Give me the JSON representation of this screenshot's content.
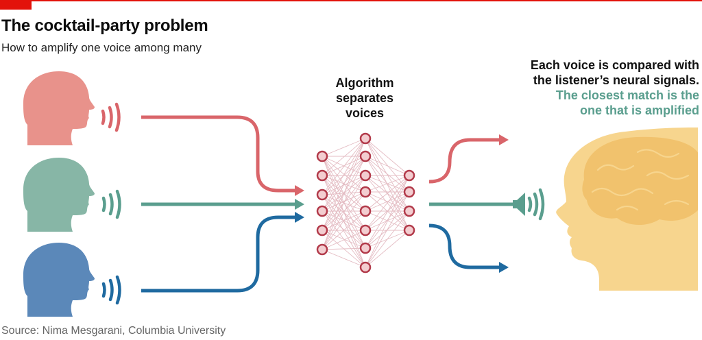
{
  "header": {
    "title": "The cocktail-party problem",
    "subtitle": "How to amplify one voice among many"
  },
  "algorithm": {
    "label_lines": [
      "Algorithm",
      "separates",
      "voices"
    ]
  },
  "annotation": {
    "dark_lines": [
      "Each voice is compared with",
      "the listener’s neural signals."
    ],
    "highlight_lines": [
      "The closest match is the",
      "one that is amplified"
    ]
  },
  "footer": {
    "source": "Source: Nima Mesgarani, Columbia University"
  },
  "colors": {
    "brand_red": "#e3120b",
    "voice_red": "#d9656a",
    "voice_teal": "#5a9e8e",
    "voice_blue": "#1f6aa0",
    "head_red": "#e8928b",
    "head_teal": "#87b6a6",
    "head_blue": "#5b88b9",
    "listener_head": "#f7d58e",
    "listener_brain": "#f1c26d",
    "node_fill": "#f3cdd0",
    "node_stroke": "#b23a4a",
    "edge": "#e4bcc3"
  },
  "icons": {
    "speakers": [
      "head-silhouette-icon",
      "head-silhouette-icon",
      "head-silhouette-icon"
    ],
    "sound_waves": "sound-wave-icon",
    "amplifier": "loudspeaker-icon",
    "network": "neural-network-icon",
    "listener": "head-with-brain-icon"
  }
}
